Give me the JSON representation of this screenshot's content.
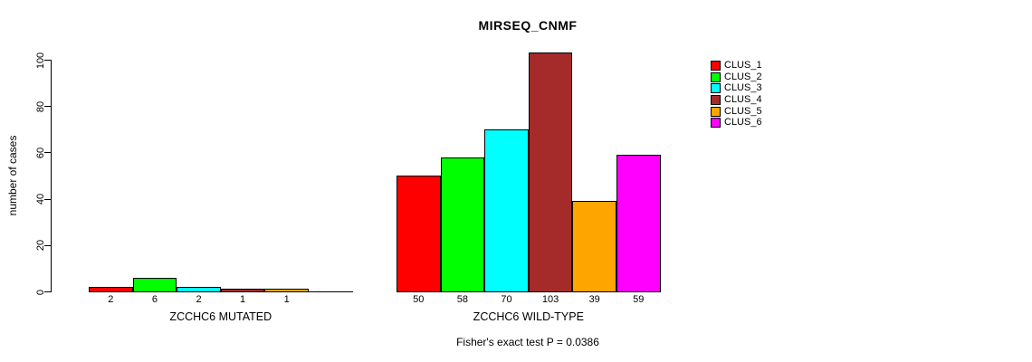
{
  "chart_data": {
    "type": "bar",
    "title": "MIRSEQ_CNMF",
    "ylabel": "number of cases",
    "xlabel": "",
    "ylim": [
      0,
      100
    ],
    "yticks": [
      0,
      20,
      40,
      60,
      80,
      100
    ],
    "grid": false,
    "legend_position": "right",
    "categories": [
      "ZCCHC6 MUTATED",
      "ZCCHC6 WILD-TYPE"
    ],
    "series": [
      {
        "name": "CLUS_1",
        "color": "#ff0000",
        "values": [
          2,
          50
        ]
      },
      {
        "name": "CLUS_2",
        "color": "#00ff00",
        "values": [
          6,
          58
        ]
      },
      {
        "name": "CLUS_3",
        "color": "#00ffff",
        "values": [
          2,
          70
        ]
      },
      {
        "name": "CLUS_4",
        "color": "#a52a2a",
        "values": [
          1,
          103
        ]
      },
      {
        "name": "CLUS_5",
        "color": "#ffa500",
        "values": [
          1,
          39
        ]
      },
      {
        "name": "CLUS_6",
        "color": "#ff00ff",
        "values": [
          0,
          59
        ]
      }
    ],
    "bar_labels": [
      [
        "2",
        "6",
        "2",
        "1",
        "1",
        ""
      ],
      [
        "50",
        "58",
        "70",
        "103",
        "39",
        "59"
      ]
    ],
    "annotation": "Fisher's exact test P = 0.0386"
  }
}
